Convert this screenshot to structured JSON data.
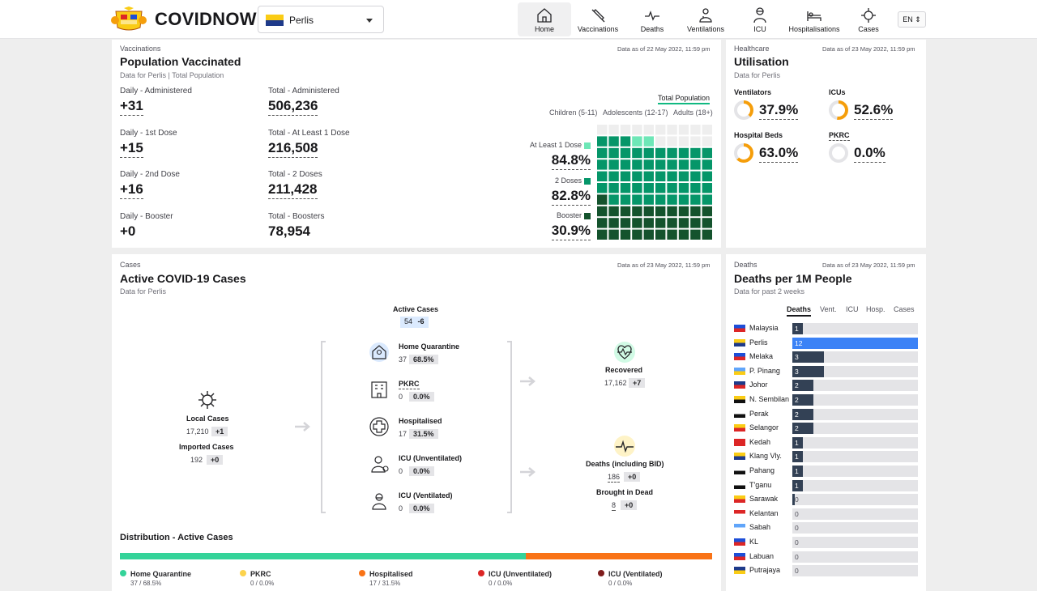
{
  "nav": {
    "brand": "COVIDNOW",
    "state": "Perlis",
    "items": [
      {
        "label": "Home",
        "icon": "home-icon"
      },
      {
        "label": "Vaccinations",
        "icon": "syringe-icon"
      },
      {
        "label": "Deaths",
        "icon": "pulse-icon"
      },
      {
        "label": "Ventilations",
        "icon": "ventilator-icon"
      },
      {
        "label": "ICU",
        "icon": "icu-icon"
      },
      {
        "label": "Hospitalisations",
        "icon": "bed-icon"
      },
      {
        "label": "Cases",
        "icon": "virus-icon"
      }
    ],
    "lang": "EN ⇕"
  },
  "vacc": {
    "overline": "Vaccinations",
    "timestamp": "Data as of 22 May 2022, 11:59 pm",
    "title": "Population Vaccinated",
    "subtitle": "Data for Perlis | Total Population",
    "stats": [
      {
        "daily_label": "Daily - Administered",
        "daily": "+31",
        "total_label": "Total - Administered",
        "total": "506,236"
      },
      {
        "daily_label": "Daily - 1st Dose",
        "daily": "+15",
        "total_label": "Total - At Least 1 Dose",
        "total": "216,508"
      },
      {
        "daily_label": "Daily - 2nd Dose",
        "daily": "+16",
        "total_label": "Total - 2 Doses",
        "total": "211,428"
      },
      {
        "daily_label": "Daily - Booster",
        "daily": "+0",
        "total_label": "Total - Boosters",
        "total": "78,954"
      }
    ],
    "tab_total": "Total Population",
    "tab_children": "Children (5-11)",
    "tab_adolescents": "Adolescents (12-17)",
    "tab_adults": "Adults (18+)",
    "doses": [
      {
        "label": "At Least 1 Dose",
        "value": "84.8%",
        "pct": 84.8,
        "color": "#6ee7b7"
      },
      {
        "label": "2 Doses",
        "value": "82.8%",
        "pct": 82.8,
        "color": "#059669"
      },
      {
        "label": "Booster",
        "value": "30.9%",
        "pct": 30.9,
        "color": "#14532d"
      }
    ]
  },
  "health": {
    "overline": "Healthcare",
    "timestamp": "Data as of 23 May 2022, 11:59 pm",
    "title": "Utilisation",
    "subtitle": "Data for Perlis",
    "items": [
      {
        "label": "Ventilators",
        "value": "37.9%",
        "pct": 37.9
      },
      {
        "label": "ICUs",
        "value": "52.6%",
        "pct": 52.6
      },
      {
        "label": "Hospital Beds",
        "value": "63.0%",
        "pct": 63.0
      },
      {
        "label": "PKRC",
        "value": "0.0%",
        "pct": 0.0
      }
    ],
    "gauge_color": "#f59e0b"
  },
  "cases": {
    "overline": "Cases",
    "timestamp": "Data as of 23 May 2022, 11:59 pm",
    "title": "Active COVID-19 Cases",
    "subtitle": "Data for Perlis",
    "active_label": "Active Cases",
    "active_value": "54",
    "active_delta": "-6",
    "local_label": "Local Cases",
    "local_value": "17,210",
    "local_delta": "+1",
    "imported_label": "Imported Cases",
    "imported_value": "192",
    "imported_delta": "+0",
    "middle": [
      {
        "label": "Home Quarantine",
        "value": "37",
        "pct": "68.5%",
        "icon": "house-person-icon"
      },
      {
        "label": "PKRC",
        "value": "0",
        "pct": "0.0%",
        "icon": "building-icon"
      },
      {
        "label": "Hospitalised",
        "value": "17",
        "pct": "31.5%",
        "icon": "medical-cross-icon"
      },
      {
        "label": "ICU (Unventilated)",
        "value": "0",
        "pct": "0.0%",
        "icon": "doctor-icon"
      },
      {
        "label": "ICU (Ventilated)",
        "value": "0",
        "pct": "0.0%",
        "icon": "ventilated-patient-icon"
      }
    ],
    "recovered_label": "Recovered",
    "recovered_value": "17,162",
    "recovered_delta": "+7",
    "deaths_label": "Deaths (including BID)",
    "deaths_value": "186",
    "deaths_delta": "+0",
    "bid_label": "Brought in Dead",
    "bid_value": "8",
    "bid_delta": "+0",
    "dist_title": "Distribution - Active Cases",
    "dist": [
      {
        "name": "Home Quarantine",
        "val": "37 / 68.5%",
        "pct": 68.5,
        "color": "#34d399"
      },
      {
        "name": "PKRC",
        "val": "0 / 0.0%",
        "pct": 0,
        "color": "#fcd34d"
      },
      {
        "name": "Hospitalised",
        "val": "17 / 31.5%",
        "pct": 31.5,
        "color": "#f97316"
      },
      {
        "name": "ICU (Unventilated)",
        "val": "0 / 0.0%",
        "pct": 0,
        "color": "#dc2626"
      },
      {
        "name": "ICU (Ventilated)",
        "val": "0 / 0.0%",
        "pct": 0,
        "color": "#7f1d1d"
      }
    ]
  },
  "deaths": {
    "overline": "Deaths",
    "timestamp": "Data as of 23 May 2022, 11:59 pm",
    "title": "Deaths per 1M People",
    "subtitle": "Data for past 2 weeks",
    "tabs": [
      "Deaths",
      "Vent.",
      "ICU",
      "Hosp.",
      "Cases"
    ],
    "highlight_color": "#3b82f6",
    "rows": [
      {
        "state": "Malaysia",
        "value": 1,
        "label": "1"
      },
      {
        "state": "Perlis",
        "value": 12,
        "label": "12"
      },
      {
        "state": "Melaka",
        "value": 3,
        "label": "3"
      },
      {
        "state": "P. Pinang",
        "value": 3,
        "label": "3"
      },
      {
        "state": "Johor",
        "value": 2,
        "label": "2"
      },
      {
        "state": "N. Sembilan",
        "value": 2,
        "label": "2"
      },
      {
        "state": "Perak",
        "value": 2,
        "label": "2"
      },
      {
        "state": "Selangor",
        "value": 2,
        "label": "2"
      },
      {
        "state": "Kedah",
        "value": 1,
        "label": "1"
      },
      {
        "state": "Klang Vly.",
        "value": 1,
        "label": "1"
      },
      {
        "state": "Pahang",
        "value": 1,
        "label": "1"
      },
      {
        "state": "T'ganu",
        "value": 1,
        "label": "1"
      },
      {
        "state": "Sarawak",
        "value": 0.2,
        "label": "0"
      },
      {
        "state": "Kelantan",
        "value": 0,
        "label": "0"
      },
      {
        "state": "Sabah",
        "value": 0,
        "label": "0"
      },
      {
        "state": "KL",
        "value": 0,
        "label": "0"
      },
      {
        "state": "Labuan",
        "value": 0,
        "label": "0"
      },
      {
        "state": "Putrajaya",
        "value": 0,
        "label": "0"
      }
    ]
  }
}
